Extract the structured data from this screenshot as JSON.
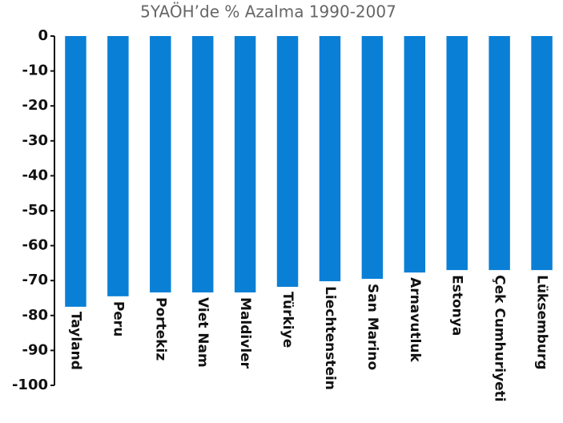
{
  "chart_data": {
    "type": "bar",
    "title": "5YAÖH’de % Azalma 1990-2007",
    "categories": [
      "Tayland",
      "Peru",
      "Portekiz",
      "Viet Nam",
      "Maldivler",
      "Türkiye",
      "Liechtenstein",
      "San Marino",
      "Arnavutluk",
      "Estonya",
      "Çek Cumhuriyeti",
      "Lüksemburg"
    ],
    "values": [
      -77.5,
      -74.5,
      -73.4,
      -73.4,
      -73.4,
      -71.8,
      -70.2,
      -69.5,
      -67.7,
      -67,
      -67,
      -67
    ],
    "color": "#0a7fd6",
    "ylim": [
      -100,
      0
    ],
    "yticks": [
      0,
      -10,
      -20,
      -30,
      -40,
      -50,
      -60,
      -70,
      -80,
      -90,
      -100
    ],
    "grid": false
  }
}
